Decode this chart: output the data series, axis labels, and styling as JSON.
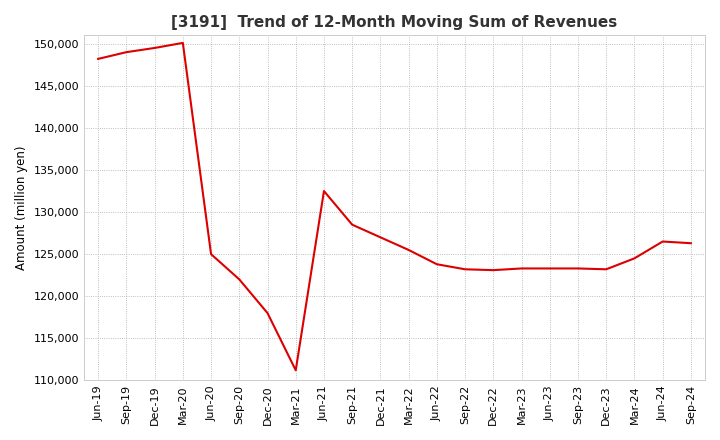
{
  "title": "[3191]  Trend of 12-Month Moving Sum of Revenues",
  "ylabel": "Amount (million yen)",
  "line_color": "#dd0000",
  "background_color": "#ffffff",
  "grid_color": "#aaaaaa",
  "ylim": [
    110000,
    151000
  ],
  "yticks": [
    110000,
    115000,
    120000,
    125000,
    130000,
    135000,
    140000,
    145000,
    150000
  ],
  "x_labels": [
    "Jun-19",
    "Sep-19",
    "Dec-19",
    "Mar-20",
    "Jun-20",
    "Sep-20",
    "Dec-20",
    "Mar-21",
    "Jun-21",
    "Sep-21",
    "Dec-21",
    "Mar-22",
    "Jun-22",
    "Sep-22",
    "Dec-22",
    "Mar-23",
    "Jun-23",
    "Sep-23",
    "Dec-23",
    "Mar-24",
    "Jun-24",
    "Sep-24"
  ],
  "y_values": [
    148200,
    149000,
    149500,
    150100,
    125000,
    122000,
    118000,
    111200,
    132500,
    128500,
    127000,
    125500,
    123800,
    123200,
    123100,
    123300,
    123300,
    123300,
    123200,
    124500,
    126500,
    126300
  ],
  "title_fontsize": 11,
  "tick_fontsize": 8,
  "ylabel_fontsize": 8.5
}
